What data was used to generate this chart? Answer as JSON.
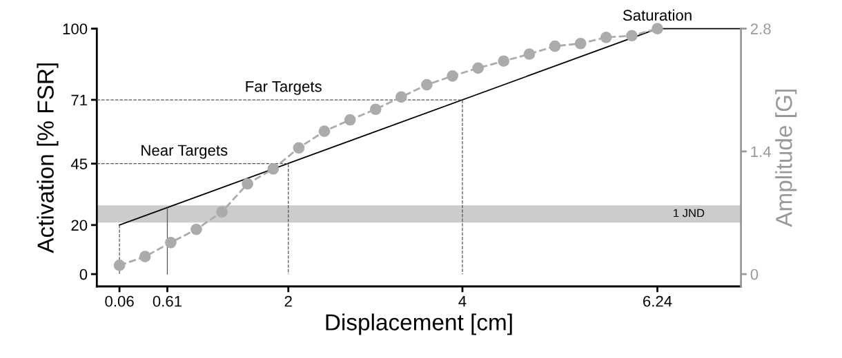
{
  "chart_data": {
    "type": "line",
    "xlabel": "Displacement [cm]",
    "ylabel": "Activation [% FSR]",
    "y2label": "Amplitude [G]",
    "xlim": [
      -0.2,
      7.2
    ],
    "xticks": [
      0.06,
      0.61,
      2,
      4,
      6.24
    ],
    "ylim": [
      -5,
      100
    ],
    "yticks": [
      0,
      20,
      45,
      71,
      100
    ],
    "y2lim": [
      -0.14,
      2.8
    ],
    "y2ticks": [
      0,
      1.4,
      2.8
    ],
    "grid": false,
    "legend": false,
    "series": [
      {
        "color": "#000000",
        "line_style": "solid",
        "marker": "none",
        "x": [
          0.06,
          6.24,
          7.2
        ],
        "values": [
          20,
          100,
          100
        ]
      },
      {
        "color": "#555555",
        "line_style": "dashed",
        "marker": "none",
        "x": [
          -0.2,
          4,
          4
        ],
        "values": [
          71,
          71,
          0
        ]
      },
      {
        "color": "#555555",
        "line_style": "dashed",
        "marker": "none",
        "x": [
          -0.2,
          2,
          2
        ],
        "values": [
          45,
          45,
          0
        ]
      },
      {
        "color": "#555555",
        "line_style": "dashed",
        "marker": "none",
        "x": [
          0.06,
          0.06
        ],
        "values": [
          20,
          0
        ]
      },
      {
        "color": "#555555",
        "line_style": "solid",
        "marker": "none",
        "x": [
          0.61,
          0.61
        ],
        "values": [
          27,
          0
        ]
      },
      {
        "color": "#ababab",
        "line_style": "dashed",
        "marker": "circle",
        "axis": "y2",
        "x": [
          0.06,
          0.354,
          0.649,
          0.943,
          1.237,
          1.531,
          1.826,
          2.12,
          2.414,
          2.709,
          3.003,
          3.297,
          3.591,
          3.886,
          4.18,
          4.474,
          4.769,
          5.063,
          5.357,
          5.651,
          5.946,
          6.24
        ],
        "values": [
          0.1,
          0.2,
          0.36,
          0.51,
          0.71,
          1.03,
          1.2,
          1.44,
          1.63,
          1.76,
          1.88,
          2.02,
          2.16,
          2.26,
          2.35,
          2.43,
          2.51,
          2.6,
          2.63,
          2.7,
          2.72,
          2.8
        ]
      }
    ],
    "bands": [
      {
        "axis": "y",
        "from": 21,
        "to": 28,
        "label": "1 JND",
        "color": "#cccccc"
      }
    ],
    "annotations": [
      {
        "text": "Far Targets",
        "x": 1.5,
        "y": 71
      },
      {
        "text": "Near Targets",
        "x": 0.3,
        "y": 45
      },
      {
        "text": "Saturation",
        "x": 6.24,
        "y": 100
      }
    ]
  }
}
